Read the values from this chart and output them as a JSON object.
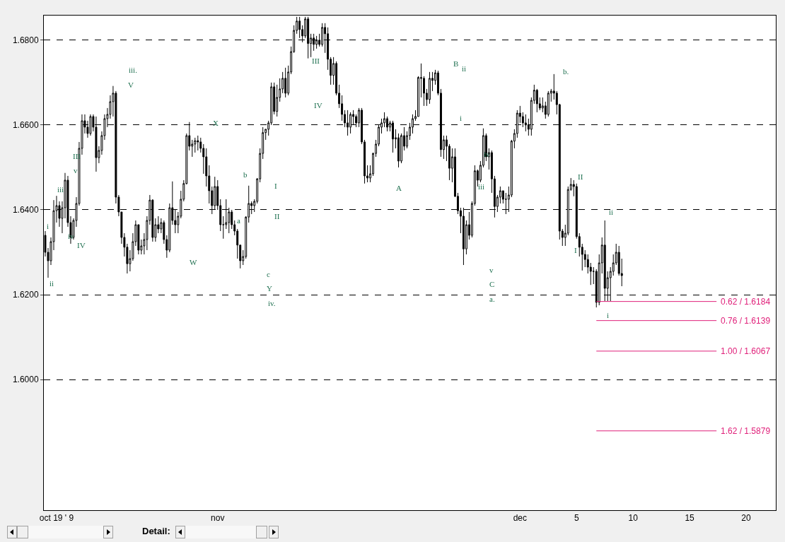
{
  "chart_data": {
    "type": "candlestick",
    "color": "#000000",
    "categories": [
      null,
      null,
      null,
      null,
      "oct 19 ' 9",
      null,
      null,
      null,
      null,
      null,
      null,
      null,
      null,
      null,
      null,
      null,
      null,
      null,
      null,
      null,
      null,
      null,
      null,
      null,
      null,
      null,
      null,
      null,
      null,
      null,
      null,
      null,
      null,
      null,
      null,
      null,
      null,
      null,
      null,
      null,
      null,
      null,
      null,
      null,
      null,
      null,
      null,
      null,
      null,
      null,
      null,
      null,
      null,
      null,
      null,
      null,
      null,
      null,
      null,
      null,
      null,
      "nov",
      null,
      null,
      null,
      null,
      null,
      null,
      null,
      null,
      null,
      null,
      null,
      null,
      null,
      null,
      null,
      null,
      null,
      null,
      null,
      null,
      null,
      null,
      null,
      null,
      null,
      null,
      null,
      null,
      null,
      null,
      null,
      null,
      null,
      null,
      null,
      null,
      null,
      null,
      null,
      null,
      null,
      null,
      null,
      null,
      null,
      null,
      null,
      null,
      null,
      null,
      null,
      null,
      null,
      null,
      null,
      null,
      null,
      null,
      null,
      null,
      null,
      null,
      null,
      null,
      null,
      null,
      null,
      null,
      null,
      null,
      null,
      null,
      null,
      null,
      null,
      null,
      null,
      null,
      null,
      null,
      null,
      null,
      null,
      null,
      null,
      null,
      null,
      null,
      null,
      null,
      null,
      null,
      null,
      null,
      null,
      null,
      null,
      null,
      null,
      null,
      null,
      null,
      null,
      null,
      null,
      null,
      "dec",
      null,
      null,
      null,
      null,
      null,
      null,
      null,
      null,
      null,
      null,
      null,
      null,
      null,
      null,
      null,
      null,
      null,
      null,
      null,
      "5",
      null,
      null,
      null,
      null,
      null,
      null,
      null,
      null,
      null,
      null,
      null,
      null,
      null,
      null,
      null,
      null,
      null,
      null,
      null,
      "10",
      null,
      null,
      null,
      null,
      null,
      null,
      null,
      null,
      null,
      null,
      null,
      null,
      null,
      null,
      null,
      null,
      null,
      null,
      null,
      "15",
      null,
      null,
      null,
      null,
      null,
      null,
      null,
      null,
      null,
      null,
      null,
      null,
      null,
      null,
      null,
      null,
      null,
      null,
      null,
      "20",
      null,
      null,
      null,
      null,
      null,
      null,
      null,
      null,
      null,
      null
    ],
    "ylim": [
      1.5692,
      1.6858
    ],
    "yticks": [
      {
        "value": 1.6,
        "label": "1.6000"
      },
      {
        "value": 1.62,
        "label": "1.6200"
      },
      {
        "value": 1.64,
        "label": "1.6400"
      },
      {
        "value": 1.66,
        "label": "1.6600"
      },
      {
        "value": 1.68,
        "label": "1.6800"
      }
    ],
    "grid": "y",
    "ohlc": [
      [
        1.634,
        1.635,
        1.629,
        1.63
      ],
      [
        1.63,
        1.631,
        1.624,
        1.628
      ],
      [
        1.628,
        1.6335,
        1.627,
        1.6325
      ],
      [
        1.6325,
        1.6423,
        1.6305,
        1.6398
      ],
      [
        1.6398,
        1.6433,
        1.637,
        1.641
      ],
      [
        1.641,
        1.642,
        1.636,
        1.638
      ],
      [
        1.638,
        1.642,
        1.6345,
        1.6405
      ],
      [
        1.6405,
        1.6487,
        1.638,
        1.647
      ],
      [
        1.647,
        1.648,
        1.636,
        1.637
      ],
      [
        1.637,
        1.6385,
        1.632,
        1.6335
      ],
      [
        1.6335,
        1.638,
        1.633,
        1.6375
      ],
      [
        1.6375,
        1.643,
        1.636,
        1.6415
      ],
      [
        1.6415,
        1.656,
        1.641,
        1.6545
      ],
      [
        1.6545,
        1.6625,
        1.653,
        1.661
      ],
      [
        1.661,
        1.6625,
        1.658,
        1.6595
      ],
      [
        1.6595,
        1.661,
        1.657,
        1.658
      ],
      [
        1.658,
        1.6625,
        1.6575,
        1.662
      ],
      [
        1.662,
        1.6625,
        1.6585,
        1.6595
      ],
      [
        1.6595,
        1.662,
        1.649,
        1.6523
      ],
      [
        1.6523,
        1.655,
        1.651,
        1.654
      ],
      [
        1.654,
        1.6585,
        1.653,
        1.6575
      ],
      [
        1.6575,
        1.6625,
        1.6565,
        1.6615
      ],
      [
        1.6615,
        1.664,
        1.6595,
        1.6625
      ],
      [
        1.6625,
        1.667,
        1.6615,
        1.6655
      ],
      [
        1.6655,
        1.6692,
        1.662,
        1.6675
      ],
      [
        1.6675,
        1.668,
        1.6415,
        1.643
      ],
      [
        1.643,
        1.6435,
        1.6385,
        1.6395
      ],
      [
        1.6395,
        1.6395,
        1.632,
        1.6335
      ],
      [
        1.6335,
        1.6345,
        1.629,
        1.6312
      ],
      [
        1.6312,
        1.632,
        1.625,
        1.6273
      ],
      [
        1.6273,
        1.6305,
        1.6255,
        1.6285
      ],
      [
        1.6285,
        1.6345,
        1.628,
        1.6325
      ],
      [
        1.6325,
        1.6375,
        1.6315,
        1.6365
      ],
      [
        1.6365,
        1.6365,
        1.6295,
        1.6305
      ],
      [
        1.6305,
        1.633,
        1.6295,
        1.6315
      ],
      [
        1.6315,
        1.6345,
        1.6295,
        1.633
      ],
      [
        1.633,
        1.6385,
        1.6305,
        1.6375
      ],
      [
        1.6375,
        1.6435,
        1.6365,
        1.6423
      ],
      [
        1.6423,
        1.6425,
        1.6325,
        1.6335
      ],
      [
        1.6335,
        1.638,
        1.6325,
        1.6365
      ],
      [
        1.6365,
        1.6385,
        1.6345,
        1.6355
      ],
      [
        1.6355,
        1.638,
        1.6345,
        1.637
      ],
      [
        1.637,
        1.6375,
        1.632,
        1.633
      ],
      [
        1.633,
        1.634,
        1.6287,
        1.6305
      ],
      [
        1.6305,
        1.6415,
        1.63,
        1.6405
      ],
      [
        1.6405,
        1.6467,
        1.6365,
        1.6375
      ],
      [
        1.6375,
        1.64,
        1.6345,
        1.6365
      ],
      [
        1.6365,
        1.6395,
        1.6345,
        1.6385
      ],
      [
        1.6385,
        1.6445,
        1.638,
        1.6425
      ],
      [
        1.6425,
        1.647,
        1.642,
        1.6462
      ],
      [
        1.6462,
        1.658,
        1.646,
        1.6575
      ],
      [
        1.6575,
        1.6607,
        1.654,
        1.655
      ],
      [
        1.655,
        1.6565,
        1.6525,
        1.6555
      ],
      [
        1.6555,
        1.657,
        1.6535,
        1.6563
      ],
      [
        1.6563,
        1.6575,
        1.654,
        1.656
      ],
      [
        1.656,
        1.657,
        1.6535,
        1.6545
      ],
      [
        1.6545,
        1.6555,
        1.6485,
        1.6525
      ],
      [
        1.6525,
        1.6545,
        1.6455,
        1.648
      ],
      [
        1.648,
        1.6505,
        1.6415,
        1.6445
      ],
      [
        1.6445,
        1.6455,
        1.639,
        1.641
      ],
      [
        1.641,
        1.6478,
        1.64,
        1.6455
      ],
      [
        1.6455,
        1.647,
        1.64,
        1.641
      ],
      [
        1.641,
        1.6425,
        1.635,
        1.6365
      ],
      [
        1.6365,
        1.6385,
        1.6332,
        1.6365
      ],
      [
        1.6365,
        1.6425,
        1.6355,
        1.637
      ],
      [
        1.637,
        1.6405,
        1.6345,
        1.6395
      ],
      [
        1.6395,
        1.64,
        1.6355,
        1.6365
      ],
      [
        1.6365,
        1.6375,
        1.634,
        1.635
      ],
      [
        1.635,
        1.6355,
        1.6285,
        1.6317
      ],
      [
        1.6317,
        1.6317,
        1.6262,
        1.628
      ],
      [
        1.628,
        1.6305,
        1.627,
        1.629
      ],
      [
        1.629,
        1.6385,
        1.6285,
        1.6383
      ],
      [
        1.6383,
        1.6457,
        1.637,
        1.6415
      ],
      [
        1.6415,
        1.642,
        1.639,
        1.641
      ],
      [
        1.641,
        1.6425,
        1.6395,
        1.642
      ],
      [
        1.642,
        1.6475,
        1.6415,
        1.6473
      ],
      [
        1.6473,
        1.6545,
        1.6465,
        1.6533
      ],
      [
        1.6533,
        1.6595,
        1.652,
        1.6582
      ],
      [
        1.6582,
        1.659,
        1.6565,
        1.659
      ],
      [
        1.659,
        1.661,
        1.6575,
        1.6605
      ],
      [
        1.6605,
        1.67,
        1.66,
        1.669
      ],
      [
        1.669,
        1.67,
        1.6625,
        1.6632
      ],
      [
        1.6632,
        1.6695,
        1.662,
        1.6665
      ],
      [
        1.6665,
        1.671,
        1.6655,
        1.6685
      ],
      [
        1.6685,
        1.6725,
        1.6675,
        1.671
      ],
      [
        1.671,
        1.6735,
        1.6665,
        1.6675
      ],
      [
        1.6675,
        1.674,
        1.667,
        1.6725
      ],
      [
        1.6725,
        1.6785,
        1.672,
        1.6773
      ],
      [
        1.6773,
        1.6835,
        1.677,
        1.6823
      ],
      [
        1.6823,
        1.6855,
        1.6815,
        1.6845
      ],
      [
        1.6845,
        1.6855,
        1.6805,
        1.6825
      ],
      [
        1.6825,
        1.6835,
        1.6795,
        1.681
      ],
      [
        1.681,
        1.6855,
        1.6805,
        1.685
      ],
      [
        1.685,
        1.6855,
        1.6757,
        1.6792
      ],
      [
        1.6792,
        1.6815,
        1.676,
        1.6805
      ],
      [
        1.6805,
        1.6815,
        1.6775,
        1.679
      ],
      [
        1.679,
        1.681,
        1.678,
        1.68
      ],
      [
        1.68,
        1.6815,
        1.6785,
        1.679
      ],
      [
        1.679,
        1.684,
        1.6785,
        1.683
      ],
      [
        1.683,
        1.684,
        1.677,
        1.6815
      ],
      [
        1.6815,
        1.683,
        1.673,
        1.6755
      ],
      [
        1.6755,
        1.676,
        1.6695,
        1.6717
      ],
      [
        1.6717,
        1.676,
        1.6695,
        1.6745
      ],
      [
        1.6745,
        1.675,
        1.667,
        1.6675
      ],
      [
        1.6675,
        1.6695,
        1.664,
        1.665
      ],
      [
        1.665,
        1.667,
        1.661,
        1.6625
      ],
      [
        1.6625,
        1.6635,
        1.6595,
        1.6605
      ],
      [
        1.6605,
        1.6635,
        1.6575,
        1.6595
      ],
      [
        1.6595,
        1.663,
        1.658,
        1.6625
      ],
      [
        1.6625,
        1.6635,
        1.66,
        1.662
      ],
      [
        1.662,
        1.6625,
        1.6595,
        1.6605
      ],
      [
        1.6605,
        1.664,
        1.6595,
        1.6635
      ],
      [
        1.6635,
        1.664,
        1.6555,
        1.656
      ],
      [
        1.656,
        1.6565,
        1.6462,
        1.648
      ],
      [
        1.648,
        1.6505,
        1.6465,
        1.6475
      ],
      [
        1.6475,
        1.6505,
        1.6465,
        1.6485
      ],
      [
        1.6485,
        1.6535,
        1.648,
        1.6533
      ],
      [
        1.6533,
        1.6565,
        1.6525,
        1.6555
      ],
      [
        1.6555,
        1.66,
        1.655,
        1.6595
      ],
      [
        1.6595,
        1.6615,
        1.658,
        1.6605
      ],
      [
        1.6605,
        1.663,
        1.6595,
        1.6615
      ],
      [
        1.6615,
        1.662,
        1.6585,
        1.6595
      ],
      [
        1.6595,
        1.661,
        1.6585,
        1.6605
      ],
      [
        1.6605,
        1.661,
        1.6535,
        1.6567
      ],
      [
        1.6567,
        1.659,
        1.6545,
        1.657
      ],
      [
        1.657,
        1.658,
        1.65,
        1.6515
      ],
      [
        1.6515,
        1.658,
        1.651,
        1.6575
      ],
      [
        1.6575,
        1.6595,
        1.654,
        1.655
      ],
      [
        1.655,
        1.6585,
        1.6545,
        1.6575
      ],
      [
        1.6575,
        1.6605,
        1.6565,
        1.6595
      ],
      [
        1.6595,
        1.6625,
        1.658,
        1.6615
      ],
      [
        1.6615,
        1.6635,
        1.661,
        1.662
      ],
      [
        1.662,
        1.6715,
        1.662,
        1.6712
      ],
      [
        1.6712,
        1.6745,
        1.6665,
        1.671
      ],
      [
        1.671,
        1.6715,
        1.6645,
        1.6675
      ],
      [
        1.6675,
        1.6685,
        1.6645,
        1.666
      ],
      [
        1.666,
        1.6725,
        1.665,
        1.671
      ],
      [
        1.671,
        1.6725,
        1.668,
        1.6705
      ],
      [
        1.6705,
        1.673,
        1.6695,
        1.6723
      ],
      [
        1.6723,
        1.6728,
        1.667,
        1.6675
      ],
      [
        1.6675,
        1.6685,
        1.6525,
        1.6542
      ],
      [
        1.6542,
        1.6575,
        1.652,
        1.6565
      ],
      [
        1.6565,
        1.6575,
        1.6515,
        1.655
      ],
      [
        1.655,
        1.6555,
        1.647,
        1.6498
      ],
      [
        1.6498,
        1.6545,
        1.6465,
        1.6525
      ],
      [
        1.6525,
        1.6545,
        1.643,
        1.6432
      ],
      [
        1.6432,
        1.644,
        1.639,
        1.6398
      ],
      [
        1.6398,
        1.6405,
        1.6345,
        1.6385
      ],
      [
        1.6385,
        1.6405,
        1.627,
        1.6308
      ],
      [
        1.6308,
        1.6375,
        1.6295,
        1.6365
      ],
      [
        1.6365,
        1.6395,
        1.633,
        1.634
      ],
      [
        1.634,
        1.642,
        1.6335,
        1.6415
      ],
      [
        1.6415,
        1.6505,
        1.641,
        1.6492
      ],
      [
        1.6492,
        1.6495,
        1.6455,
        1.647
      ],
      [
        1.647,
        1.6515,
        1.6465,
        1.6505
      ],
      [
        1.6505,
        1.6592,
        1.65,
        1.6575
      ],
      [
        1.6575,
        1.658,
        1.6515,
        1.6525
      ],
      [
        1.6525,
        1.6545,
        1.6495,
        1.6535
      ],
      [
        1.6535,
        1.654,
        1.644,
        1.6473
      ],
      [
        1.6473,
        1.648,
        1.6382,
        1.6408
      ],
      [
        1.6408,
        1.6435,
        1.6395,
        1.643
      ],
      [
        1.643,
        1.6455,
        1.6415,
        1.6445
      ],
      [
        1.6445,
        1.6445,
        1.6415,
        1.6425
      ],
      [
        1.6425,
        1.644,
        1.639,
        1.6425
      ],
      [
        1.6425,
        1.6455,
        1.6395,
        1.6435
      ],
      [
        1.6435,
        1.6565,
        1.643,
        1.6562
      ],
      [
        1.6562,
        1.659,
        1.6545,
        1.658
      ],
      [
        1.658,
        1.6635,
        1.657,
        1.6628
      ],
      [
        1.6628,
        1.6645,
        1.6605,
        1.662
      ],
      [
        1.662,
        1.663,
        1.6595,
        1.6605
      ],
      [
        1.6605,
        1.6625,
        1.6585,
        1.66
      ],
      [
        1.66,
        1.6615,
        1.6575,
        1.659
      ],
      [
        1.659,
        1.6665,
        1.6575,
        1.6658
      ],
      [
        1.6658,
        1.6695,
        1.665,
        1.6682
      ],
      [
        1.6682,
        1.6685,
        1.663,
        1.665
      ],
      [
        1.665,
        1.6665,
        1.6635,
        1.664
      ],
      [
        1.664,
        1.6665,
        1.663,
        1.6645
      ],
      [
        1.6645,
        1.6655,
        1.6615,
        1.6625
      ],
      [
        1.6625,
        1.668,
        1.662,
        1.6675
      ],
      [
        1.6675,
        1.6685,
        1.6655,
        1.668
      ],
      [
        1.668,
        1.672,
        1.666,
        1.6675
      ],
      [
        1.6675,
        1.668,
        1.6625,
        1.6648
      ],
      [
        1.6648,
        1.665,
        1.633,
        1.635
      ],
      [
        1.635,
        1.6355,
        1.6315,
        1.6335
      ],
      [
        1.6335,
        1.6365,
        1.6315,
        1.6345
      ],
      [
        1.6345,
        1.6455,
        1.634,
        1.6448
      ],
      [
        1.6448,
        1.6475,
        1.6445,
        1.646
      ],
      [
        1.646,
        1.647,
        1.6432,
        1.6455
      ],
      [
        1.6455,
        1.6462,
        1.6332,
        1.6337
      ],
      [
        1.6337,
        1.6345,
        1.629,
        1.6312
      ],
      [
        1.6312,
        1.632,
        1.6257,
        1.6295
      ],
      [
        1.6295,
        1.6305,
        1.6265,
        1.6283
      ],
      [
        1.6283,
        1.6295,
        1.625,
        1.6265
      ],
      [
        1.6265,
        1.6275,
        1.6223,
        1.6255
      ],
      [
        1.6255,
        1.6265,
        1.6225,
        1.6255
      ],
      [
        1.6255,
        1.626,
        1.617,
        1.6182
      ],
      [
        1.6182,
        1.6295,
        1.6175,
        1.6275
      ],
      [
        1.6275,
        1.6335,
        1.625,
        1.6317
      ],
      [
        1.6317,
        1.6375,
        1.6185,
        1.6215
      ],
      [
        1.6215,
        1.6255,
        1.6185,
        1.624
      ],
      [
        1.624,
        1.6265,
        1.6185,
        1.6255
      ],
      [
        1.6255,
        1.6295,
        1.6245,
        1.6275
      ],
      [
        1.6275,
        1.632,
        1.627,
        1.63
      ],
      [
        1.63,
        1.6315,
        1.6245,
        1.625
      ],
      [
        1.625,
        1.6285,
        1.622,
        1.6245
      ],
      null,
      null,
      null,
      null,
      null,
      null,
      null,
      null,
      null,
      null,
      null,
      null,
      null,
      null,
      null,
      null,
      null,
      null,
      null,
      null,
      null,
      null,
      null,
      null,
      null,
      null,
      null,
      null,
      null,
      null,
      null,
      null,
      null,
      null,
      null,
      null,
      null,
      null,
      null,
      null,
      null,
      null,
      null,
      null,
      null,
      null,
      null,
      null,
      null,
      null,
      null,
      null,
      null,
      null
    ],
    "ref_lines": [
      {
        "axis": "y",
        "value": 1.6184,
        "label": "0.62 / 1.6184",
        "color": "#e0207a"
      },
      {
        "axis": "y",
        "value": 1.6139,
        "label": "0.76 / 1.6139",
        "color": "#e0207a"
      },
      {
        "axis": "y",
        "value": 1.6067,
        "label": "1.00 / 1.6067",
        "color": "#e0207a"
      },
      {
        "axis": "y",
        "value": 1.5879,
        "label": "1.62 / 1.5879",
        "color": "#e0207a"
      }
    ],
    "annotations": [
      "i",
      "ii",
      "iii",
      "v",
      "III",
      "iv",
      "IV",
      "iii.",
      "V",
      "W",
      "X",
      "b",
      "a",
      "I",
      "II",
      "c",
      "Y",
      "iv.",
      "III",
      "IV",
      "A",
      "B",
      "ii",
      "i",
      "iv",
      "iii",
      "v",
      "C",
      "a.",
      "b.",
      "II",
      "I",
      "ii",
      "i",
      "Detail:"
    ]
  }
}
